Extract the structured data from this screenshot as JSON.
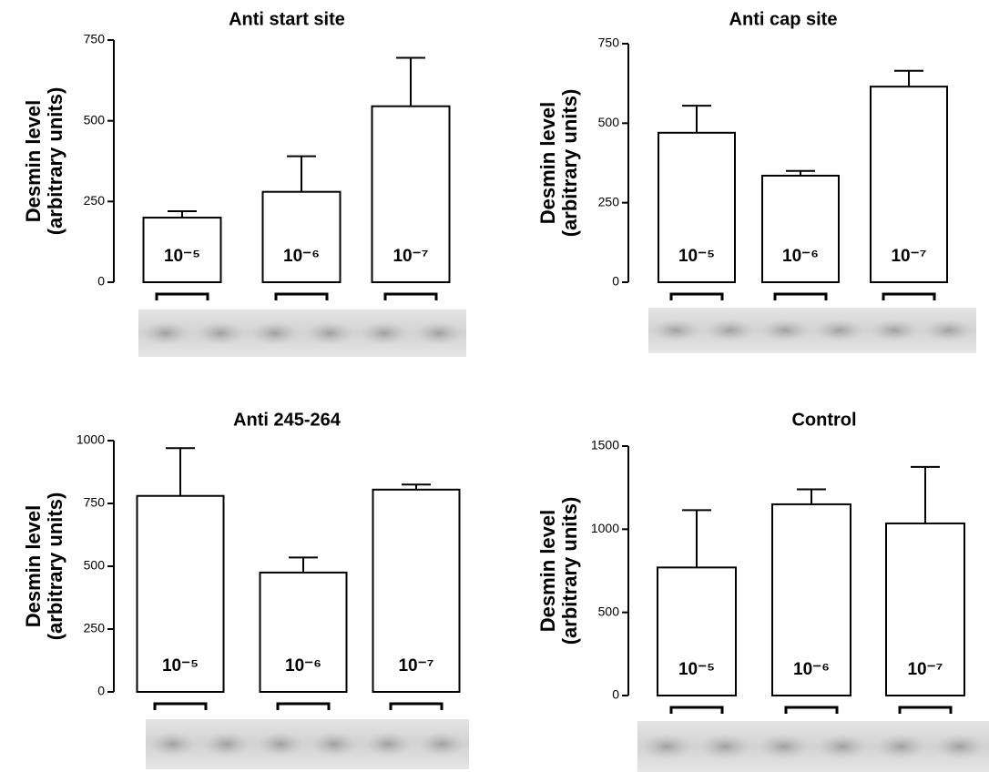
{
  "chart_data": [
    {
      "type": "bar",
      "title": "Anti start site",
      "ylabel": [
        "Desmin level",
        "(arbitrary units)"
      ],
      "categories": [
        "10⁻⁵",
        "10⁻⁶",
        "10⁻⁷"
      ],
      "values": [
        200,
        280,
        545
      ],
      "errors": [
        20,
        110,
        150
      ],
      "color": "#ffffff",
      "ylim": [
        0,
        750
      ],
      "yticks": [
        0,
        250,
        500,
        750
      ]
    },
    {
      "type": "bar",
      "title": "Anti cap site",
      "ylabel": [
        "Desmin level",
        "(arbitrary units)"
      ],
      "categories": [
        "10⁻⁵",
        "10⁻⁶",
        "10⁻⁷"
      ],
      "values": [
        470,
        335,
        615
      ],
      "errors": [
        85,
        15,
        50
      ],
      "color": "#ffffff",
      "ylim": [
        0,
        750
      ],
      "yticks": [
        0,
        250,
        500,
        750
      ]
    },
    {
      "type": "bar",
      "title": "Anti 245-264",
      "ylabel": [
        "Desmin level",
        "(arbitrary units)"
      ],
      "categories": [
        "10⁻⁵",
        "10⁻⁶",
        "10⁻⁷"
      ],
      "values": [
        780,
        475,
        805
      ],
      "errors": [
        190,
        60,
        20
      ],
      "color": "#ffffff",
      "ylim": [
        0,
        1000
      ],
      "yticks": [
        0,
        250,
        500,
        750,
        1000
      ]
    },
    {
      "type": "bar",
      "title": "Control",
      "ylabel": [
        "Desmin level",
        "(arbitrary units)"
      ],
      "categories": [
        "10⁻⁵",
        "10⁻⁶",
        "10⁻⁷"
      ],
      "values": [
        770,
        1150,
        1035
      ],
      "errors": [
        345,
        90,
        340
      ],
      "color": "#ffffff",
      "ylim": [
        0,
        1500
      ],
      "yticks": [
        0,
        500,
        1000,
        1500
      ]
    }
  ]
}
